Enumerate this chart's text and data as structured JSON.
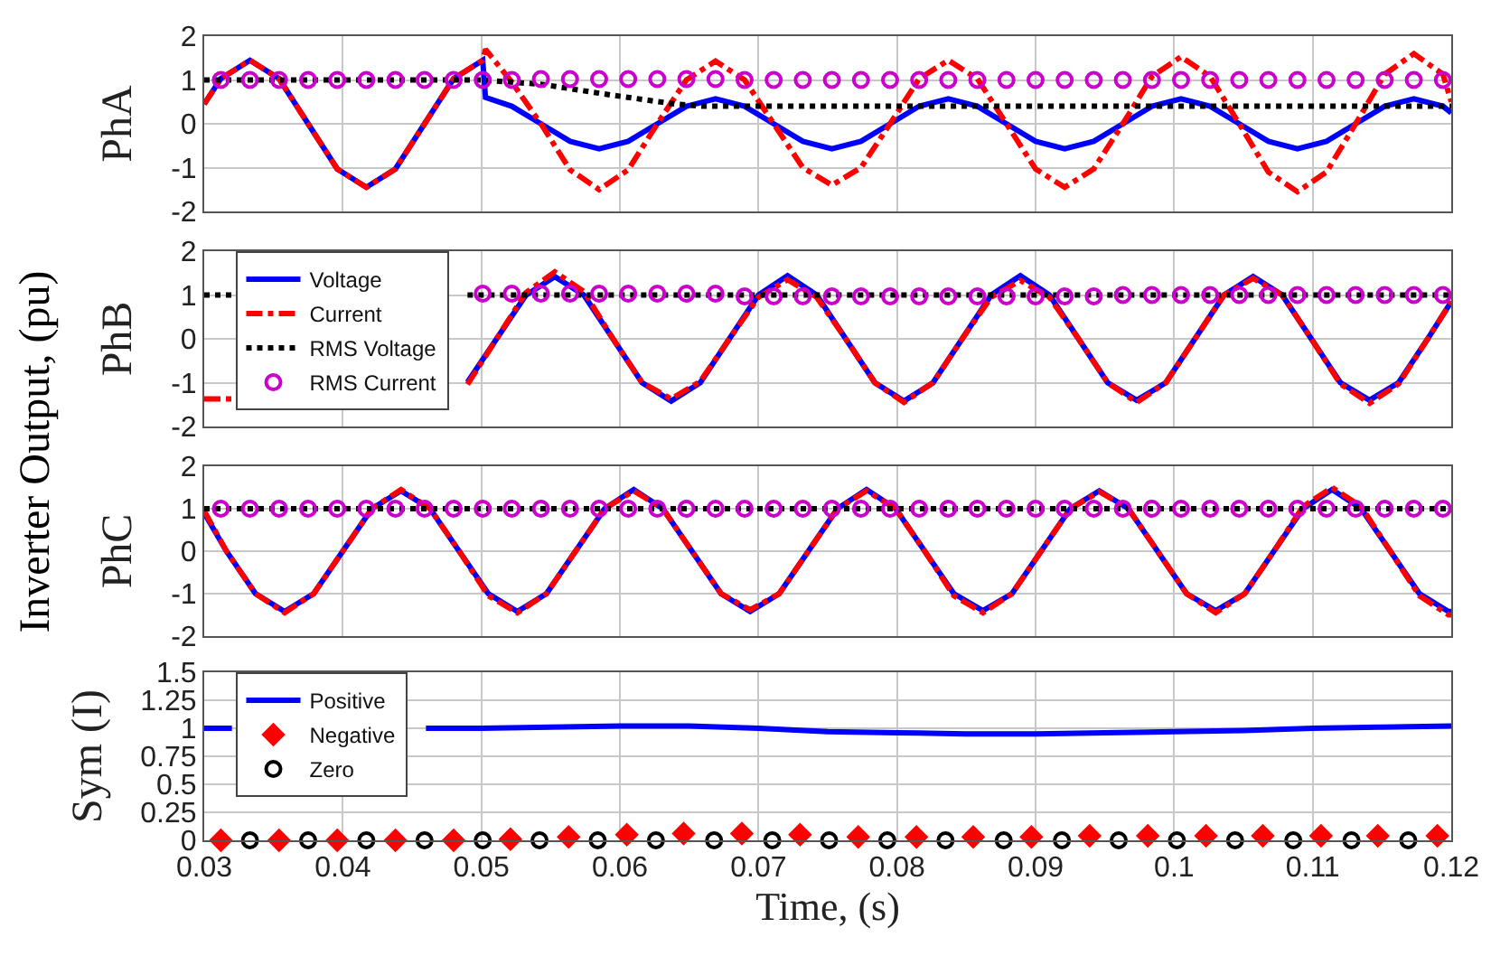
{
  "chart_data": [
    {
      "type": "line",
      "ylabel": "PhA",
      "annotations": [
        "Inverter Output, (pu)"
      ],
      "xlim": [
        0.03,
        0.12
      ],
      "xticks": [
        0.03,
        0.04,
        0.05,
        0.06,
        0.07,
        0.08,
        0.09,
        0.1,
        0.11,
        0.12
      ],
      "ylim": [
        -2,
        2
      ],
      "yticks": [
        -2,
        -1,
        0,
        1,
        2
      ],
      "grid": true,
      "tick_labels": "y",
      "series": [
        {
          "color": "#0000ff",
          "line_style": "solid",
          "x": [
            0.03,
            0.0312,
            0.0333,
            0.0354,
            0.0375,
            0.0396,
            0.0417,
            0.0438,
            0.0459,
            0.048,
            0.0501,
            0.0503,
            0.0522,
            0.0543,
            0.0564,
            0.0585,
            0.0606,
            0.0627,
            0.0648,
            0.0669,
            0.069,
            0.0711,
            0.0732,
            0.0753,
            0.0774,
            0.0795,
            0.0816,
            0.0837,
            0.0858,
            0.0879,
            0.09,
            0.0921,
            0.0942,
            0.0963,
            0.0984,
            0.1005,
            0.1026,
            0.1047,
            0.1068,
            0.1089,
            0.111,
            0.1131,
            0.1152,
            0.1173,
            0.1194,
            0.12
          ],
          "values": [
            0.45,
            1.03,
            1.45,
            1.03,
            0,
            -1.03,
            -1.45,
            -1.03,
            0,
            1.03,
            1.45,
            0.6,
            0.4,
            0,
            -0.4,
            -0.57,
            -0.4,
            0,
            0.4,
            0.57,
            0.4,
            0,
            -0.4,
            -0.57,
            -0.4,
            0,
            0.4,
            0.57,
            0.4,
            0,
            -0.4,
            -0.57,
            -0.4,
            0,
            0.4,
            0.57,
            0.4,
            0,
            -0.4,
            -0.57,
            -0.4,
            0,
            0.4,
            0.57,
            0.4,
            0.25
          ]
        },
        {
          "color": "#ff0000",
          "line_style": "dashed",
          "x": [
            0.03,
            0.0312,
            0.0333,
            0.0354,
            0.0375,
            0.0396,
            0.0417,
            0.0438,
            0.0459,
            0.048,
            0.0501,
            0.0503,
            0.0522,
            0.0543,
            0.0564,
            0.0585,
            0.0606,
            0.0627,
            0.0648,
            0.0669,
            0.069,
            0.0711,
            0.0732,
            0.0753,
            0.0774,
            0.0795,
            0.0816,
            0.0837,
            0.0858,
            0.0879,
            0.09,
            0.0921,
            0.0942,
            0.0963,
            0.0984,
            0.1005,
            0.1026,
            0.1047,
            0.1068,
            0.1089,
            0.111,
            0.1131,
            0.1152,
            0.1173,
            0.1194,
            0.12
          ],
          "values": [
            0.45,
            1.03,
            1.45,
            1.03,
            0,
            -1.03,
            -1.45,
            -1.03,
            0,
            1.03,
            1.45,
            1.7,
            0.95,
            0,
            -1.05,
            -1.5,
            -1.05,
            0,
            1.0,
            1.43,
            1.0,
            0,
            -1.0,
            -1.4,
            -1.0,
            0,
            1.03,
            1.45,
            1.03,
            0,
            -1.03,
            -1.45,
            -1.03,
            0,
            1.08,
            1.53,
            1.08,
            0,
            -1.1,
            -1.55,
            -1.1,
            0,
            1.13,
            1.6,
            1.13,
            0.5
          ]
        },
        {
          "color": "#000000",
          "line_style": "dotted",
          "x": [
            0.03,
            0.05,
            0.0544,
            0.0593,
            0.064,
            0.066,
            0.12
          ],
          "values": [
            1,
            1,
            0.9,
            0.66,
            0.45,
            0.4,
            0.4
          ]
        },
        {
          "type": "scatter",
          "marker": "circle",
          "color": "#cc00cc",
          "x": [
            0.0312,
            0.0333,
            0.0354,
            0.0375,
            0.0396,
            0.0417,
            0.0438,
            0.0459,
            0.048,
            0.0501,
            0.0522,
            0.0543,
            0.0564,
            0.0585,
            0.0606,
            0.0627,
            0.0648,
            0.0669,
            0.069,
            0.0711,
            0.0732,
            0.0753,
            0.0774,
            0.0795,
            0.0816,
            0.0837,
            0.0858,
            0.0879,
            0.09,
            0.0921,
            0.0942,
            0.0963,
            0.0984,
            0.1005,
            0.1026,
            0.1047,
            0.1068,
            0.1089,
            0.111,
            0.1131,
            0.1152,
            0.1173,
            0.1194
          ],
          "values": [
            1,
            1,
            1,
            1,
            1,
            1,
            1,
            1,
            1,
            1,
            1,
            1.02,
            1.02,
            1.02,
            1.02,
            1.02,
            1.02,
            1.02,
            1,
            1,
            1,
            1,
            1,
            1,
            1,
            1,
            1,
            1,
            1,
            1,
            1,
            1,
            1,
            1,
            1,
            1,
            1,
            1,
            1,
            1,
            1,
            1,
            1
          ]
        }
      ]
    },
    {
      "type": "line",
      "ylabel": "PhB",
      "xlim": [
        0.03,
        0.12
      ],
      "xticks": [
        0.03,
        0.04,
        0.05,
        0.06,
        0.07,
        0.08,
        0.09,
        0.1,
        0.11,
        0.12
      ],
      "ylim": [
        -2,
        2
      ],
      "yticks": [
        -2,
        -1,
        0,
        1,
        2
      ],
      "grid": true,
      "tick_labels": "y",
      "legend": "top left",
      "series": [
        {
          "name": "Voltage",
          "color": "#0000ff",
          "line_style": "solid",
          "x": [
            0.049,
            0.0511,
            0.0532,
            0.0553,
            0.0574,
            0.0595,
            0.0616,
            0.0637,
            0.0658,
            0.0679,
            0.07,
            0.0721,
            0.0742,
            0.0763,
            0.0784,
            0.0805,
            0.0826,
            0.0847,
            0.0868,
            0.0889,
            0.091,
            0.0931,
            0.0952,
            0.0973,
            0.0994,
            0.1015,
            0.1036,
            0.1057,
            0.1078,
            0.1099,
            0.112,
            0.1141,
            0.1162,
            0.1183,
            0.12
          ],
          "values": [
            -0.99,
            0,
            0.99,
            1.42,
            1.0,
            0,
            -1.0,
            -1.42,
            -1.0,
            0,
            1.0,
            1.44,
            1.0,
            0,
            -1.0,
            -1.42,
            -1.0,
            0,
            1.0,
            1.44,
            1.0,
            0,
            -1.0,
            -1.4,
            -1.0,
            0,
            1.0,
            1.42,
            1.0,
            0,
            -1.0,
            -1.4,
            -1.0,
            0,
            0.85
          ]
        },
        {
          "name": "Current",
          "color": "#ff0000",
          "line_style": "dashed",
          "x": [
            0.03,
            0.032,
            0.04,
            0.049,
            0.0511,
            0.0532,
            0.0553,
            0.0574,
            0.0595,
            0.0616,
            0.0637,
            0.0658,
            0.0679,
            0.07,
            0.0721,
            0.0742,
            0.0763,
            0.0784,
            0.0805,
            0.0826,
            0.0847,
            0.0868,
            0.0889,
            0.091,
            0.0931,
            0.0952,
            0.0973,
            0.0994,
            0.1015,
            0.1036,
            0.1057,
            0.1078,
            0.1099,
            0.112,
            0.1141,
            0.1162,
            0.1183,
            0.12
          ],
          "values": [
            -1.37,
            -1.37,
            null,
            -1.04,
            0,
            1.05,
            1.53,
            1.08,
            0,
            -1.0,
            -1.37,
            -0.97,
            0,
            0.95,
            1.35,
            0.95,
            0,
            -1.0,
            -1.45,
            -1.0,
            0,
            0.95,
            1.33,
            0.95,
            0,
            -1.0,
            -1.45,
            -1.0,
            0,
            1.0,
            1.38,
            1.0,
            0,
            -1.03,
            -1.47,
            -1.03,
            0,
            0.85
          ]
        },
        {
          "name": "RMS Voltage",
          "color": "#000000",
          "line_style": "dotted",
          "x": [
            0.03,
            0.032,
            0.04,
            0.049,
            0.12
          ],
          "values": [
            1,
            1,
            null,
            1,
            1
          ]
        },
        {
          "name": "RMS Current",
          "type": "scatter",
          "marker": "circle",
          "color": "#cc00cc",
          "x": [
            0.0501,
            0.0522,
            0.0543,
            0.0564,
            0.0585,
            0.0606,
            0.0627,
            0.0648,
            0.0669,
            0.069,
            0.0711,
            0.0732,
            0.0753,
            0.0774,
            0.0795,
            0.0816,
            0.0837,
            0.0858,
            0.0879,
            0.09,
            0.0921,
            0.0942,
            0.0963,
            0.0984,
            0.1005,
            0.1026,
            0.1047,
            0.1068,
            0.1089,
            0.111,
            0.1131,
            0.1152,
            0.1173,
            0.1194
          ],
          "values": [
            1.03,
            1.03,
            1.03,
            1.03,
            1.03,
            1.03,
            1.03,
            1.03,
            1.03,
            0.97,
            0.97,
            0.97,
            0.97,
            0.97,
            0.97,
            0.97,
            0.97,
            0.97,
            0.97,
            0.97,
            0.97,
            0.97,
            1,
            1,
            1,
            1,
            1,
            1,
            1,
            1,
            1,
            1,
            1,
            1
          ]
        }
      ]
    },
    {
      "type": "line",
      "ylabel": "PhC",
      "xlim": [
        0.03,
        0.12
      ],
      "xticks": [
        0.03,
        0.04,
        0.05,
        0.06,
        0.07,
        0.08,
        0.09,
        0.1,
        0.11,
        0.12
      ],
      "ylim": [
        -2,
        2
      ],
      "yticks": [
        -2,
        -1,
        0,
        1,
        2
      ],
      "grid": true,
      "tick_labels": "y",
      "series": [
        {
          "color": "#0000ff",
          "line_style": "solid",
          "x": [
            0.03,
            0.0316,
            0.0337,
            0.0358,
            0.0379,
            0.04,
            0.0421,
            0.0442,
            0.0463,
            0.0484,
            0.0505,
            0.0526,
            0.0547,
            0.0568,
            0.0589,
            0.061,
            0.0631,
            0.0652,
            0.0673,
            0.0694,
            0.0715,
            0.0736,
            0.0757,
            0.0778,
            0.0799,
            0.082,
            0.0841,
            0.0862,
            0.0883,
            0.0904,
            0.0925,
            0.0946,
            0.0967,
            0.0988,
            0.1009,
            0.103,
            0.1051,
            0.1072,
            0.1093,
            0.1114,
            0.1135,
            0.1156,
            0.1177,
            0.1198,
            0.12
          ],
          "values": [
            0.9,
            0,
            -1.0,
            -1.42,
            -1.0,
            0,
            1.0,
            1.42,
            1.0,
            0,
            -1.0,
            -1.42,
            -1.0,
            0,
            1.0,
            1.45,
            1.0,
            0,
            -1.0,
            -1.42,
            -1.0,
            0,
            1.0,
            1.45,
            1.0,
            0,
            -1.0,
            -1.4,
            -1.0,
            0,
            1.0,
            1.42,
            1.0,
            0,
            -1.0,
            -1.4,
            -1.0,
            0,
            1.0,
            1.45,
            1.0,
            0,
            -1.0,
            -1.42,
            -1.42
          ]
        },
        {
          "color": "#ff0000",
          "line_style": "dashed",
          "x": [
            0.03,
            0.0316,
            0.0337,
            0.0358,
            0.0379,
            0.04,
            0.0421,
            0.0442,
            0.0463,
            0.0484,
            0.0505,
            0.0526,
            0.0547,
            0.0568,
            0.0589,
            0.061,
            0.0631,
            0.0652,
            0.0673,
            0.0694,
            0.0715,
            0.0736,
            0.0757,
            0.0778,
            0.0799,
            0.082,
            0.0841,
            0.0862,
            0.0883,
            0.0904,
            0.0925,
            0.0946,
            0.0967,
            0.0988,
            0.1009,
            0.103,
            0.1051,
            0.1072,
            0.1093,
            0.1114,
            0.1135,
            0.1156,
            0.1177,
            0.1198,
            0.12
          ],
          "values": [
            0.95,
            0,
            -1.0,
            -1.45,
            -1.0,
            0,
            1.0,
            1.45,
            1.0,
            0,
            -1.05,
            -1.45,
            -1.0,
            0,
            1.0,
            1.42,
            1.0,
            0,
            -1.0,
            -1.38,
            -1.0,
            0,
            1.0,
            1.42,
            1.0,
            0,
            -1.05,
            -1.45,
            -1.0,
            0,
            1.0,
            1.4,
            1.0,
            0,
            -1.0,
            -1.45,
            -1.0,
            0,
            1.05,
            1.5,
            1.05,
            0,
            -1.05,
            -1.5,
            -1.5
          ]
        },
        {
          "color": "#000000",
          "line_style": "dotted",
          "x": [
            0.03,
            0.12
          ],
          "values": [
            1,
            1
          ]
        },
        {
          "type": "scatter",
          "marker": "circle",
          "color": "#cc00cc",
          "x": [
            0.0312,
            0.0333,
            0.0354,
            0.0375,
            0.0396,
            0.0417,
            0.0438,
            0.0459,
            0.048,
            0.0501,
            0.0522,
            0.0543,
            0.0564,
            0.0585,
            0.0606,
            0.0627,
            0.0648,
            0.0669,
            0.069,
            0.0711,
            0.0732,
            0.0753,
            0.0774,
            0.0795,
            0.0816,
            0.0837,
            0.0858,
            0.0879,
            0.09,
            0.0921,
            0.0942,
            0.0963,
            0.0984,
            0.1005,
            0.1026,
            0.1047,
            0.1068,
            0.1089,
            0.111,
            0.1131,
            0.1152,
            0.1173,
            0.1194
          ],
          "values": [
            1,
            1,
            1,
            1,
            1,
            1,
            1,
            1,
            1,
            1,
            1,
            1,
            1,
            1,
            1,
            1,
            1,
            1,
            1,
            1,
            1,
            1,
            1,
            1,
            1,
            1,
            1,
            1,
            1,
            1,
            1,
            1,
            1,
            1,
            1,
            1,
            1,
            1,
            1,
            1,
            1,
            1,
            1
          ]
        }
      ]
    },
    {
      "type": "line",
      "ylabel": "Sym (I)",
      "xlabel": "Time, (s)",
      "xlim": [
        0.03,
        0.12
      ],
      "xticks": [
        0.03,
        0.04,
        0.05,
        0.06,
        0.07,
        0.08,
        0.09,
        0.1,
        0.11,
        0.12
      ],
      "ylim": [
        0,
        1.5
      ],
      "yticks": [
        0,
        0.25,
        0.5,
        0.75,
        1,
        1.25,
        1.5
      ],
      "grid": true,
      "legend": "top left",
      "series": [
        {
          "name": "Positive",
          "color": "#0000ff",
          "line_style": "solid",
          "x": [
            0.03,
            0.032,
            0.04,
            0.046,
            0.05,
            0.055,
            0.06,
            0.065,
            0.07,
            0.075,
            0.08,
            0.085,
            0.09,
            0.095,
            0.1,
            0.105,
            0.11,
            0.115,
            0.12
          ],
          "values": [
            1,
            1,
            null,
            1,
            1,
            1.01,
            1.02,
            1.02,
            1.0,
            0.97,
            0.96,
            0.95,
            0.95,
            0.96,
            0.97,
            0.98,
            1.0,
            1.01,
            1.02
          ]
        },
        {
          "name": "Negative",
          "type": "scatter",
          "marker": "diamond",
          "color": "#ff0000",
          "x": [
            0.0312,
            0.0354,
            0.0396,
            0.0438,
            0.048,
            0.0521,
            0.0563,
            0.0605,
            0.0646,
            0.0688,
            0.073,
            0.0772,
            0.0814,
            0.0855,
            0.0897,
            0.0939,
            0.0981,
            0.1023,
            0.1064,
            0.1106,
            0.1147,
            0.119
          ],
          "values": [
            0,
            0,
            0,
            0,
            0,
            0.01,
            0.03,
            0.05,
            0.06,
            0.06,
            0.05,
            0.03,
            0.03,
            0.03,
            0.03,
            0.04,
            0.04,
            0.04,
            0.04,
            0.04,
            0.04,
            0.04
          ]
        },
        {
          "name": "Zero",
          "type": "scatter",
          "marker": "circle",
          "color": "#000000",
          "x": [
            0.0333,
            0.0375,
            0.0417,
            0.0459,
            0.0501,
            0.0542,
            0.0584,
            0.0626,
            0.0668,
            0.071,
            0.0751,
            0.0793,
            0.0835,
            0.0877,
            0.0919,
            0.096,
            0.1002,
            0.1044,
            0.1086,
            0.1128,
            0.1169
          ],
          "values": [
            0,
            0,
            0,
            0,
            0,
            0,
            0,
            0,
            0,
            0,
            0,
            0,
            0,
            0,
            0,
            0,
            0,
            0,
            0,
            0,
            0
          ]
        }
      ]
    }
  ]
}
